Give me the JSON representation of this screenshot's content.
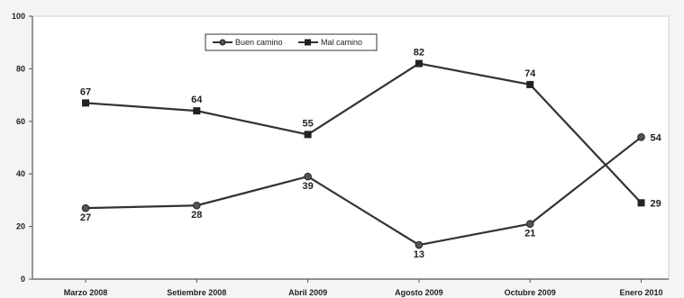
{
  "chart_data": {
    "type": "line",
    "categories": [
      "Marzo 2008",
      "Setiembre 2008",
      "Abril 2009",
      "Agosto 2009",
      "Octubre 2009",
      "Enero 2010"
    ],
    "series": [
      {
        "name": "Buen camino",
        "values": [
          27,
          28,
          39,
          13,
          21,
          54
        ],
        "marker": "circle",
        "color": "#333333"
      },
      {
        "name": "Mal camino",
        "values": [
          67,
          64,
          55,
          82,
          74,
          29
        ],
        "marker": "square",
        "color": "#333333"
      }
    ],
    "ylim": [
      0,
      100
    ],
    "yticks": [
      0,
      20,
      40,
      60,
      80,
      100
    ],
    "grid": false,
    "legend": "top-center",
    "title": "",
    "xlabel": "",
    "ylabel": ""
  }
}
